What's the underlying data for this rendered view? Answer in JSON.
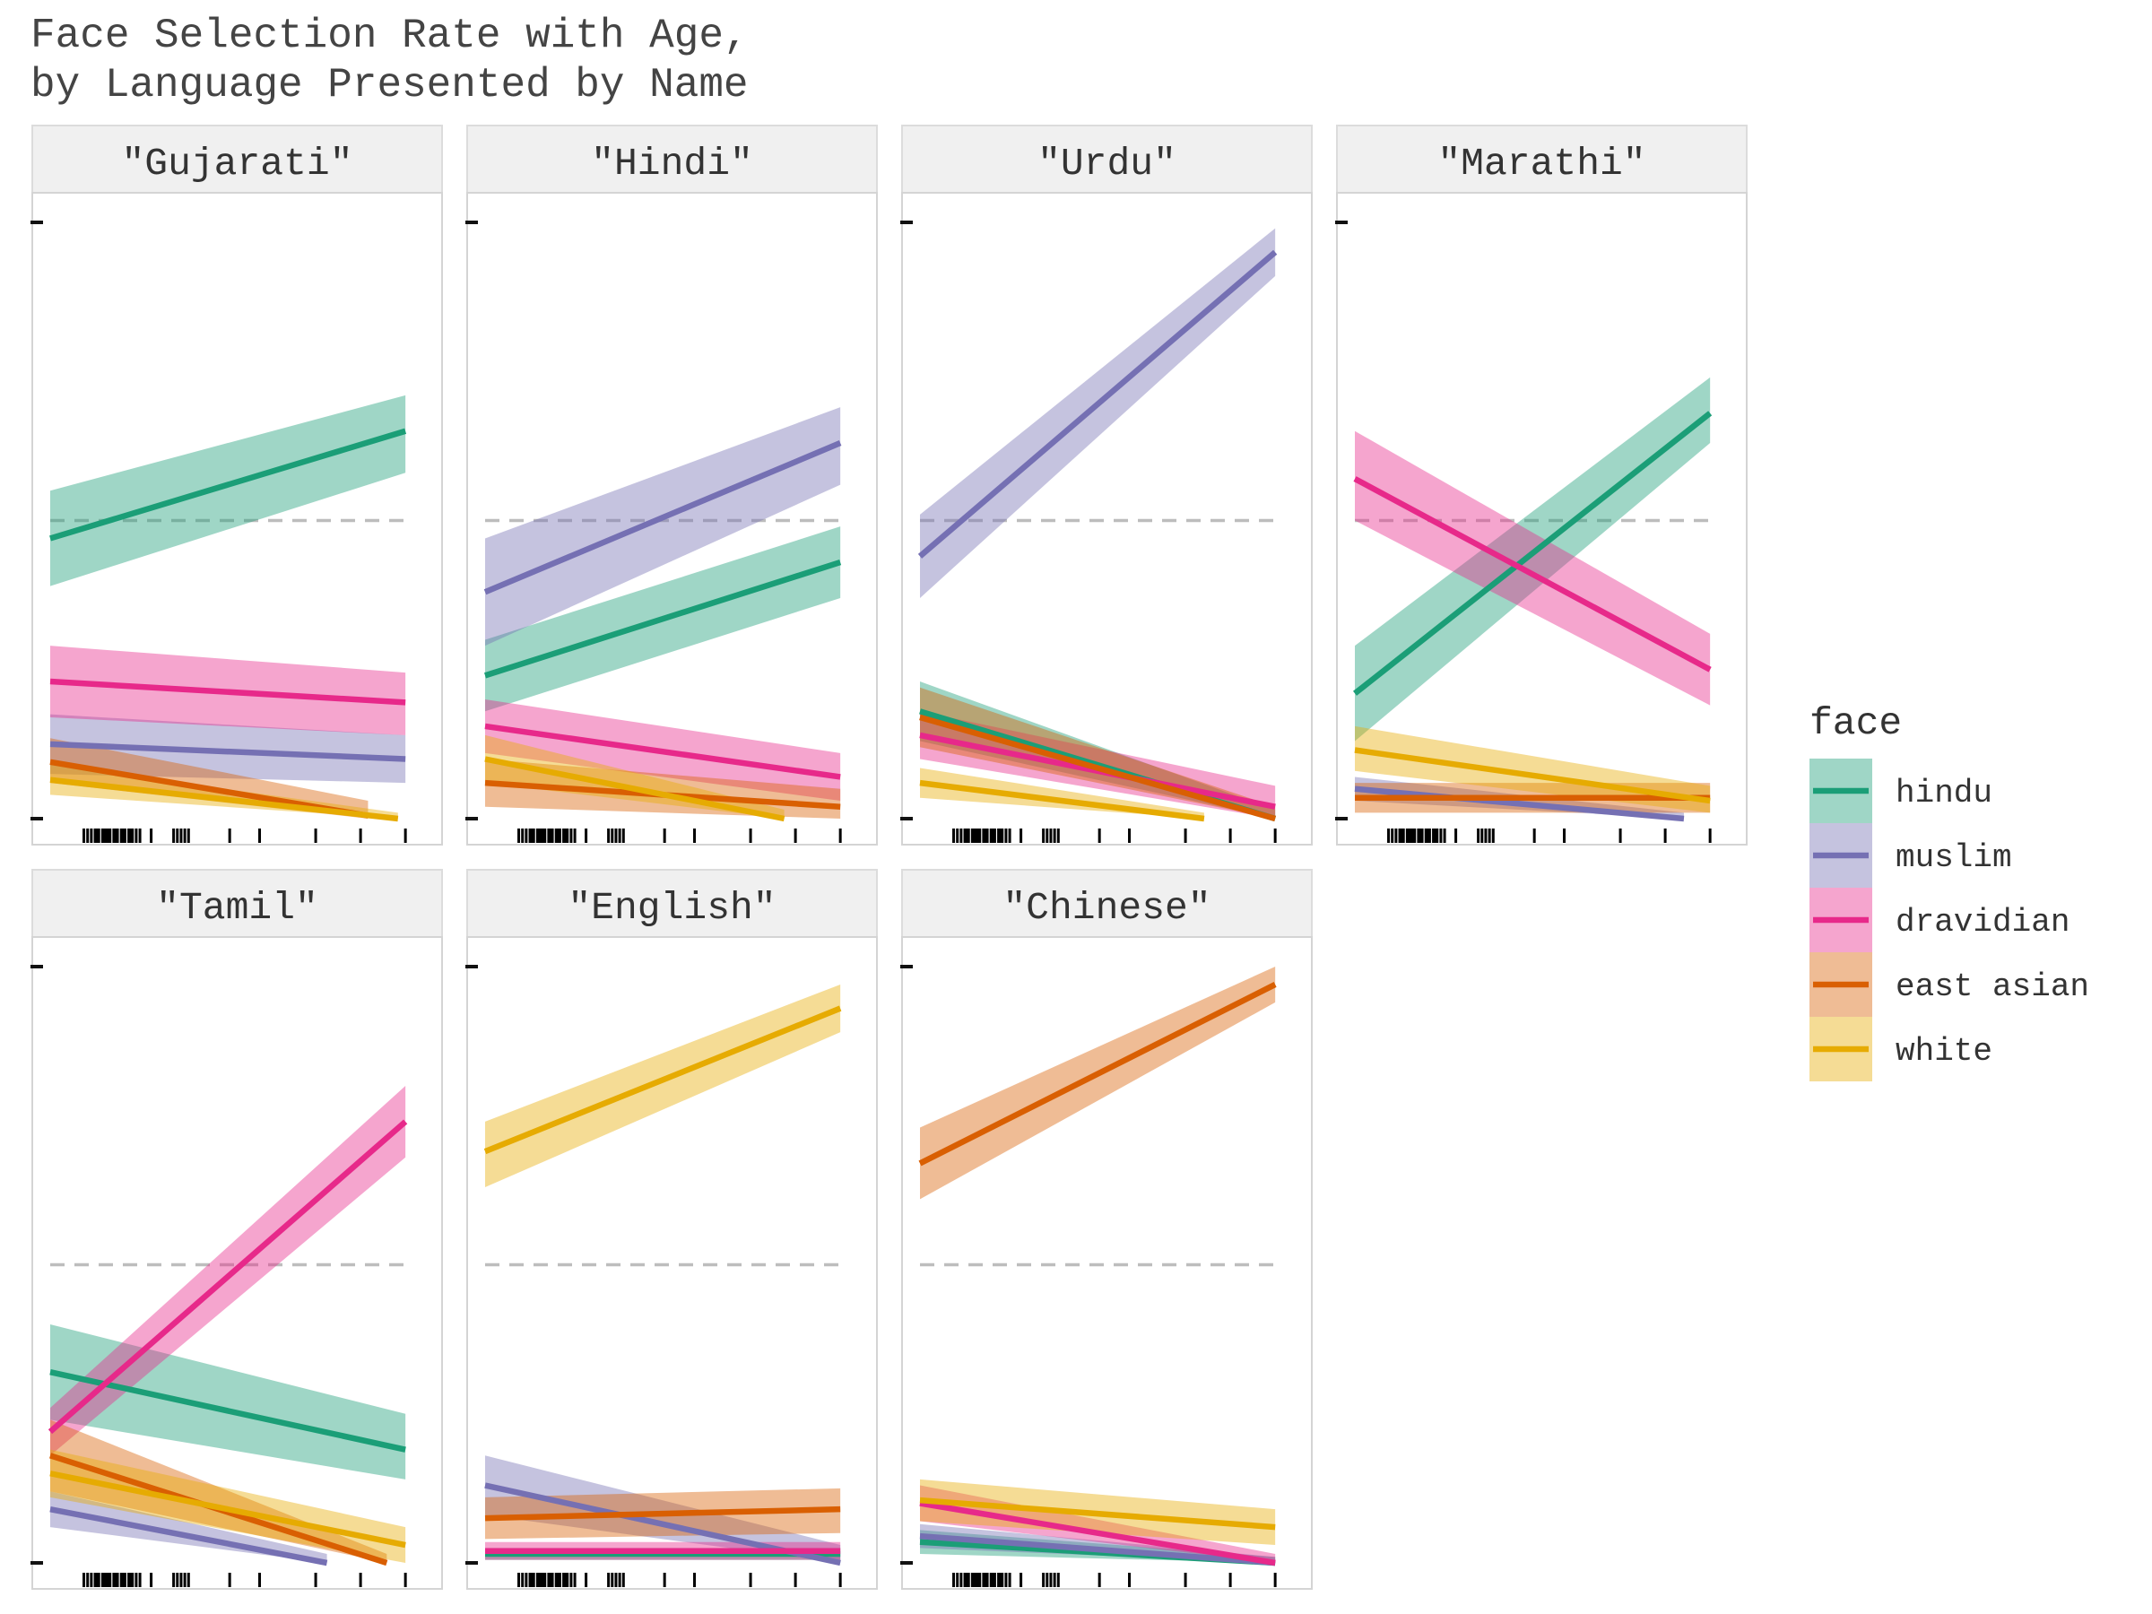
{
  "chart_data": {
    "type": "line",
    "title_lines": [
      "Face Selection Rate with Age,",
      "by Language Presented by Name"
    ],
    "xlabel": "",
    "ylabel": "",
    "xlim": [
      0,
      1
    ],
    "ylim": [
      0,
      1
    ],
    "reference_line": 0.5,
    "legend": {
      "title": "face",
      "placement": "right",
      "entries": [
        {
          "name": "hindu",
          "color": "#1b9e77"
        },
        {
          "name": "muslim",
          "color": "#7570b3"
        },
        {
          "name": "dravidian",
          "color": "#e7298a"
        },
        {
          "name": "east asian",
          "color": "#d95f02"
        },
        {
          "name": "white",
          "color": "#e6ab02"
        }
      ]
    },
    "rug_x": [
      0.09,
      0.1,
      0.11,
      0.12,
      0.125,
      0.13,
      0.14,
      0.145,
      0.15,
      0.155,
      0.16,
      0.17,
      0.175,
      0.18,
      0.19,
      0.195,
      0.2,
      0.21,
      0.215,
      0.22,
      0.23,
      0.24,
      0.27,
      0.33,
      0.34,
      0.35,
      0.36,
      0.37,
      0.48,
      0.56,
      0.71,
      0.83,
      0.95
    ],
    "panels": [
      {
        "label": "\"Gujarati\"",
        "series": [
          {
            "name": "hindu",
            "x": [
              0,
              0.95
            ],
            "y": [
              0.47,
              0.65
            ],
            "ci_lo": [
              0.39,
              0.58
            ],
            "ci_hi": [
              0.55,
              0.71
            ]
          },
          {
            "name": "muslim",
            "x": [
              0,
              0.95
            ],
            "y": [
              0.125,
              0.1
            ],
            "ci_lo": [
              0.075,
              0.06
            ],
            "ci_hi": [
              0.175,
              0.14
            ]
          },
          {
            "name": "dravidian",
            "x": [
              0,
              0.95
            ],
            "y": [
              0.23,
              0.195
            ],
            "ci_lo": [
              0.17,
              0.14
            ],
            "ci_hi": [
              0.29,
              0.245
            ]
          },
          {
            "name": "east asian",
            "x": [
              0,
              0.85
            ],
            "y": [
              0.095,
              0.005
            ],
            "ci_lo": [
              0.06,
              0.0
            ],
            "ci_hi": [
              0.135,
              0.03
            ]
          },
          {
            "name": "white",
            "x": [
              0,
              0.93
            ],
            "y": [
              0.065,
              0.0
            ],
            "ci_lo": [
              0.04,
              0.0
            ],
            "ci_hi": [
              0.09,
              0.01
            ]
          }
        ]
      },
      {
        "label": "\"Hindi\"",
        "series": [
          {
            "name": "hindu",
            "x": [
              0,
              0.95
            ],
            "y": [
              0.24,
              0.43
            ],
            "ci_lo": [
              0.18,
              0.37
            ],
            "ci_hi": [
              0.3,
              0.49
            ]
          },
          {
            "name": "muslim",
            "x": [
              0,
              0.95
            ],
            "y": [
              0.38,
              0.63
            ],
            "ci_lo": [
              0.29,
              0.56
            ],
            "ci_hi": [
              0.47,
              0.69
            ]
          },
          {
            "name": "dravidian",
            "x": [
              0,
              0.95
            ],
            "y": [
              0.155,
              0.07
            ],
            "ci_lo": [
              0.11,
              0.03
            ],
            "ci_hi": [
              0.2,
              0.11
            ]
          },
          {
            "name": "east asian",
            "x": [
              0,
              0.95
            ],
            "y": [
              0.06,
              0.02
            ],
            "ci_lo": [
              0.02,
              0.0
            ],
            "ci_hi": [
              0.1,
              0.05
            ]
          },
          {
            "name": "white",
            "x": [
              0,
              0.8
            ],
            "y": [
              0.1,
              0.0
            ],
            "ci_lo": [
              0.06,
              0.0
            ],
            "ci_hi": [
              0.14,
              0.015
            ]
          }
        ]
      },
      {
        "label": "\"Urdu\"",
        "series": [
          {
            "name": "hindu",
            "x": [
              0,
              0.95
            ],
            "y": [
              0.18,
              0.0
            ],
            "ci_lo": [
              0.13,
              0.0
            ],
            "ci_hi": [
              0.23,
              0.015
            ]
          },
          {
            "name": "muslim",
            "x": [
              0,
              0.95
            ],
            "y": [
              0.44,
              0.95
            ],
            "ci_lo": [
              0.37,
              0.91
            ],
            "ci_hi": [
              0.51,
              0.99
            ]
          },
          {
            "name": "dravidian",
            "x": [
              0,
              0.95
            ],
            "y": [
              0.14,
              0.02
            ],
            "ci_lo": [
              0.1,
              0.0
            ],
            "ci_hi": [
              0.18,
              0.055
            ]
          },
          {
            "name": "east asian",
            "x": [
              0,
              0.95
            ],
            "y": [
              0.17,
              0.0
            ],
            "ci_lo": [
              0.12,
              0.0
            ],
            "ci_hi": [
              0.22,
              0.02
            ]
          },
          {
            "name": "white",
            "x": [
              0,
              0.76
            ],
            "y": [
              0.06,
              0.0
            ],
            "ci_lo": [
              0.035,
              0.0
            ],
            "ci_hi": [
              0.085,
              0.01
            ]
          }
        ]
      },
      {
        "label": "\"Marathi\"",
        "series": [
          {
            "name": "hindu",
            "x": [
              0,
              0.95
            ],
            "y": [
              0.21,
              0.68
            ],
            "ci_lo": [
              0.13,
              0.63
            ],
            "ci_hi": [
              0.29,
              0.74
            ]
          },
          {
            "name": "muslim",
            "x": [
              0,
              0.88
            ],
            "y": [
              0.05,
              0.0
            ],
            "ci_lo": [
              0.03,
              0.0
            ],
            "ci_hi": [
              0.07,
              0.01
            ]
          },
          {
            "name": "dravidian",
            "x": [
              0,
              0.95
            ],
            "y": [
              0.57,
              0.25
            ],
            "ci_lo": [
              0.5,
              0.19
            ],
            "ci_hi": [
              0.65,
              0.31
            ]
          },
          {
            "name": "east asian",
            "x": [
              0,
              0.95
            ],
            "y": [
              0.035,
              0.035
            ],
            "ci_lo": [
              0.01,
              0.01
            ],
            "ci_hi": [
              0.06,
              0.06
            ]
          },
          {
            "name": "white",
            "x": [
              0,
              0.95
            ],
            "y": [
              0.115,
              0.03
            ],
            "ci_lo": [
              0.08,
              0.01
            ],
            "ci_hi": [
              0.155,
              0.055
            ]
          }
        ]
      },
      {
        "label": "\"Tamil\"",
        "series": [
          {
            "name": "hindu",
            "x": [
              0,
              0.95
            ],
            "y": [
              0.32,
              0.19
            ],
            "ci_lo": [
              0.24,
              0.14
            ],
            "ci_hi": [
              0.4,
              0.25
            ]
          },
          {
            "name": "muslim",
            "x": [
              0,
              0.74
            ],
            "y": [
              0.09,
              0.0
            ],
            "ci_lo": [
              0.06,
              0.0
            ],
            "ci_hi": [
              0.12,
              0.015
            ]
          },
          {
            "name": "dravidian",
            "x": [
              0,
              0.95
            ],
            "y": [
              0.22,
              0.74
            ],
            "ci_lo": [
              0.18,
              0.68
            ],
            "ci_hi": [
              0.26,
              0.8
            ]
          },
          {
            "name": "east asian",
            "x": [
              0,
              0.9
            ],
            "y": [
              0.18,
              0.0
            ],
            "ci_lo": [
              0.12,
              0.0
            ],
            "ci_hi": [
              0.24,
              0.015
            ]
          },
          {
            "name": "white",
            "x": [
              0,
              0.95
            ],
            "y": [
              0.15,
              0.03
            ],
            "ci_lo": [
              0.11,
              0.0
            ],
            "ci_hi": [
              0.19,
              0.06
            ]
          }
        ]
      },
      {
        "label": "\"English\"",
        "series": [
          {
            "name": "hindu",
            "x": [
              0,
              0.95
            ],
            "y": [
              0.015,
              0.015
            ],
            "ci_lo": [
              0.005,
              0.005
            ],
            "ci_hi": [
              0.025,
              0.025
            ]
          },
          {
            "name": "muslim",
            "x": [
              0,
              0.95
            ],
            "y": [
              0.13,
              0.0
            ],
            "ci_lo": [
              0.08,
              0.0
            ],
            "ci_hi": [
              0.18,
              0.03
            ]
          },
          {
            "name": "dravidian",
            "x": [
              0,
              0.95
            ],
            "y": [
              0.02,
              0.02
            ],
            "ci_lo": [
              0.005,
              0.005
            ],
            "ci_hi": [
              0.035,
              0.035
            ]
          },
          {
            "name": "east asian",
            "x": [
              0,
              0.95
            ],
            "y": [
              0.075,
              0.09
            ],
            "ci_lo": [
              0.04,
              0.05
            ],
            "ci_hi": [
              0.11,
              0.125
            ]
          },
          {
            "name": "white",
            "x": [
              0,
              0.95
            ],
            "y": [
              0.69,
              0.93
            ],
            "ci_lo": [
              0.63,
              0.89
            ],
            "ci_hi": [
              0.74,
              0.97
            ]
          }
        ]
      },
      {
        "label": "\"Chinese\"",
        "series": [
          {
            "name": "hindu",
            "x": [
              0,
              0.95
            ],
            "y": [
              0.035,
              0.0
            ],
            "ci_lo": [
              0.015,
              0.0
            ],
            "ci_hi": [
              0.055,
              0.01
            ]
          },
          {
            "name": "muslim",
            "x": [
              0,
              0.95
            ],
            "y": [
              0.045,
              0.0
            ],
            "ci_lo": [
              0.025,
              0.0
            ],
            "ci_hi": [
              0.065,
              0.01
            ]
          },
          {
            "name": "dravidian",
            "x": [
              0,
              0.95
            ],
            "y": [
              0.1,
              0.0
            ],
            "ci_lo": [
              0.07,
              0.0
            ],
            "ci_hi": [
              0.13,
              0.015
            ]
          },
          {
            "name": "east asian",
            "x": [
              0,
              0.95
            ],
            "y": [
              0.67,
              0.97
            ],
            "ci_lo": [
              0.61,
              0.94
            ],
            "ci_hi": [
              0.73,
              1.0
            ]
          },
          {
            "name": "white",
            "x": [
              0,
              0.95
            ],
            "y": [
              0.105,
              0.06
            ],
            "ci_lo": [
              0.07,
              0.03
            ],
            "ci_hi": [
              0.14,
              0.09
            ]
          }
        ]
      }
    ]
  }
}
